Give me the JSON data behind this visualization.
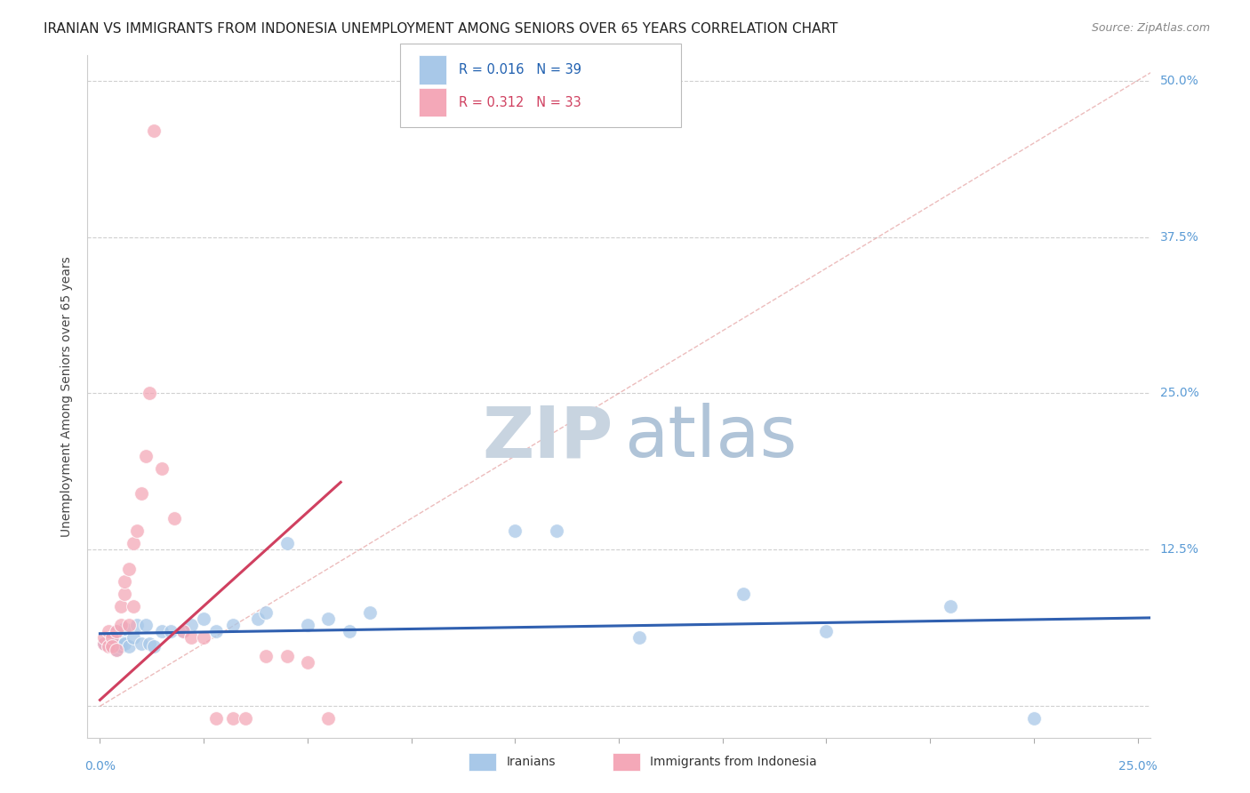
{
  "title": "IRANIAN VS IMMIGRANTS FROM INDONESIA UNEMPLOYMENT AMONG SENIORS OVER 65 YEARS CORRELATION CHART",
  "source": "Source: ZipAtlas.com",
  "ylabel": "Unemployment Among Seniors over 65 years",
  "xlim": [
    0.0,
    0.25
  ],
  "ylim": [
    -0.025,
    0.52
  ],
  "blue_color": "#a8c8e8",
  "pink_color": "#f4a8b8",
  "blue_line_color": "#3060b0",
  "pink_line_color": "#d04060",
  "diag_color": "#e8a0b0",
  "background_color": "#ffffff",
  "grid_color": "#d0d0d0",
  "title_fontsize": 11,
  "watermark_color_zip": "#c8d4e0",
  "watermark_color_atlas": "#b0c8d8",
  "iranians_x": [
    0.001,
    0.002,
    0.002,
    0.003,
    0.003,
    0.004,
    0.004,
    0.005,
    0.005,
    0.006,
    0.006,
    0.007,
    0.008,
    0.009,
    0.01,
    0.011,
    0.012,
    0.013,
    0.015,
    0.017,
    0.02,
    0.022,
    0.025,
    0.028,
    0.032,
    0.038,
    0.04,
    0.045,
    0.05,
    0.055,
    0.06,
    0.065,
    0.1,
    0.11,
    0.13,
    0.155,
    0.175,
    0.205,
    0.225
  ],
  "iranians_y": [
    0.05,
    0.05,
    0.052,
    0.048,
    0.055,
    0.045,
    0.06,
    0.048,
    0.055,
    0.05,
    0.062,
    0.048,
    0.055,
    0.065,
    0.05,
    0.065,
    0.05,
    0.048,
    0.06,
    0.06,
    0.06,
    0.065,
    0.07,
    0.06,
    0.065,
    0.07,
    0.075,
    0.13,
    0.065,
    0.07,
    0.06,
    0.075,
    0.14,
    0.14,
    0.055,
    0.09,
    0.06,
    0.08,
    -0.01
  ],
  "indonesia_x": [
    0.001,
    0.001,
    0.002,
    0.002,
    0.003,
    0.003,
    0.004,
    0.004,
    0.005,
    0.005,
    0.006,
    0.006,
    0.007,
    0.007,
    0.008,
    0.008,
    0.009,
    0.01,
    0.011,
    0.012,
    0.013,
    0.015,
    0.018,
    0.02,
    0.022,
    0.025,
    0.028,
    0.032,
    0.035,
    0.04,
    0.045,
    0.05,
    0.055
  ],
  "indonesia_y": [
    0.05,
    0.055,
    0.048,
    0.06,
    0.055,
    0.048,
    0.06,
    0.045,
    0.08,
    0.065,
    0.09,
    0.1,
    0.11,
    0.065,
    0.13,
    0.08,
    0.14,
    0.17,
    0.2,
    0.25,
    0.46,
    0.19,
    0.15,
    0.06,
    0.055,
    0.055,
    -0.01,
    -0.01,
    -0.01,
    0.04,
    0.04,
    0.035,
    -0.01
  ]
}
